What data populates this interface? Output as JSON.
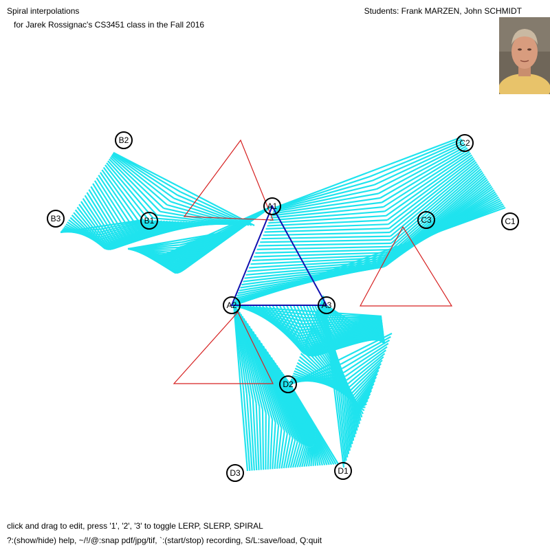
{
  "header": {
    "title": "Spiral interpolations",
    "subtitle": "for Jarek Rossignac's CS3451 class in the Fall 2016",
    "students": "Students: Frank MARZEN, John SCHMIDT"
  },
  "footer": {
    "help_line_1": "click and drag to edit, press '1', '2', '3' to toggle LERP, SLERP, SPIRAL",
    "help_line_2": "?:(show/hide) help, ~/!/@:snap pdf/jpg/tif, `:(start/stop) recording, S/L:save/load, Q:quit"
  },
  "photo": {
    "icon": "portrait-photo-icon"
  },
  "colors": {
    "spiral_lines": "#1fe3ee",
    "triangle_outline": "#d62020",
    "center_triangle": "#1010b0",
    "handle_stroke": "#000000"
  },
  "control_points": [
    {
      "label": "B2"
    },
    {
      "label": "B3"
    },
    {
      "label": "B1"
    },
    {
      "label": "A1"
    },
    {
      "label": "A2"
    },
    {
      "label": "A3"
    },
    {
      "label": "C2"
    },
    {
      "label": "C3"
    },
    {
      "label": "C1"
    },
    {
      "label": "D3"
    },
    {
      "label": "D1"
    },
    {
      "label": "D2"
    }
  ]
}
